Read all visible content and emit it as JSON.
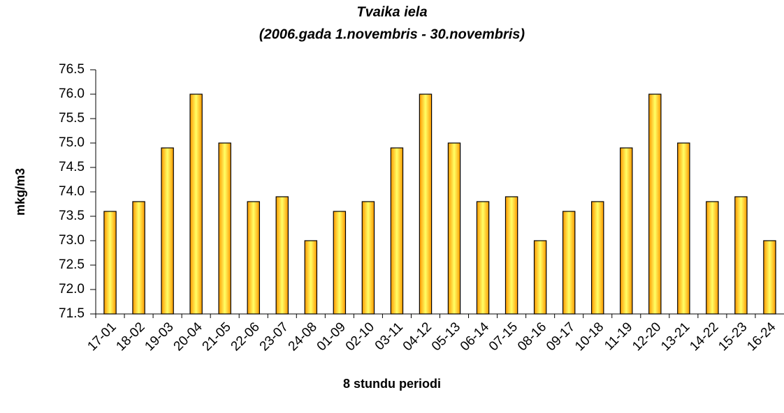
{
  "chart_data": {
    "type": "bar",
    "title": "Tvaika iela",
    "subtitle": "(2006.gada 1.novembris - 30.novembris)",
    "x_label": "8 stundu periodi",
    "y_label": "mkg/m3",
    "categories": [
      "17-01",
      "18-02",
      "19-03",
      "20-04",
      "21-05",
      "22-06",
      "23-07",
      "24-08",
      "01-09",
      "02-10",
      "03-11",
      "04-12",
      "05-13",
      "06-14",
      "07-15",
      "08-16",
      "09-17",
      "10-18",
      "11-19",
      "12-20",
      "13-21",
      "14-22",
      "15-23",
      "16-24"
    ],
    "values": [
      73.6,
      73.8,
      74.9,
      76.0,
      75.0,
      73.8,
      73.9,
      73.0,
      73.6,
      73.8,
      74.9,
      76.0,
      75.0,
      73.8,
      73.9,
      73.0,
      73.6,
      73.8,
      74.9,
      76.0,
      75.0,
      73.8,
      73.9,
      73.0
    ],
    "color": "#ff9900",
    "ylim": [
      71.5,
      76.5
    ],
    "yticks": [
      71.5,
      {
        "value": 72,
        "label": "72.0"
      },
      72.5,
      {
        "value": 73,
        "label": "73.0"
      },
      73.5,
      {
        "value": 74,
        "label": "74.0"
      },
      74.5,
      {
        "value": 75,
        "label": "75.0"
      },
      75.5,
      {
        "value": 76,
        "label": "76.0"
      },
      76.5
    ],
    "grid": false
  }
}
